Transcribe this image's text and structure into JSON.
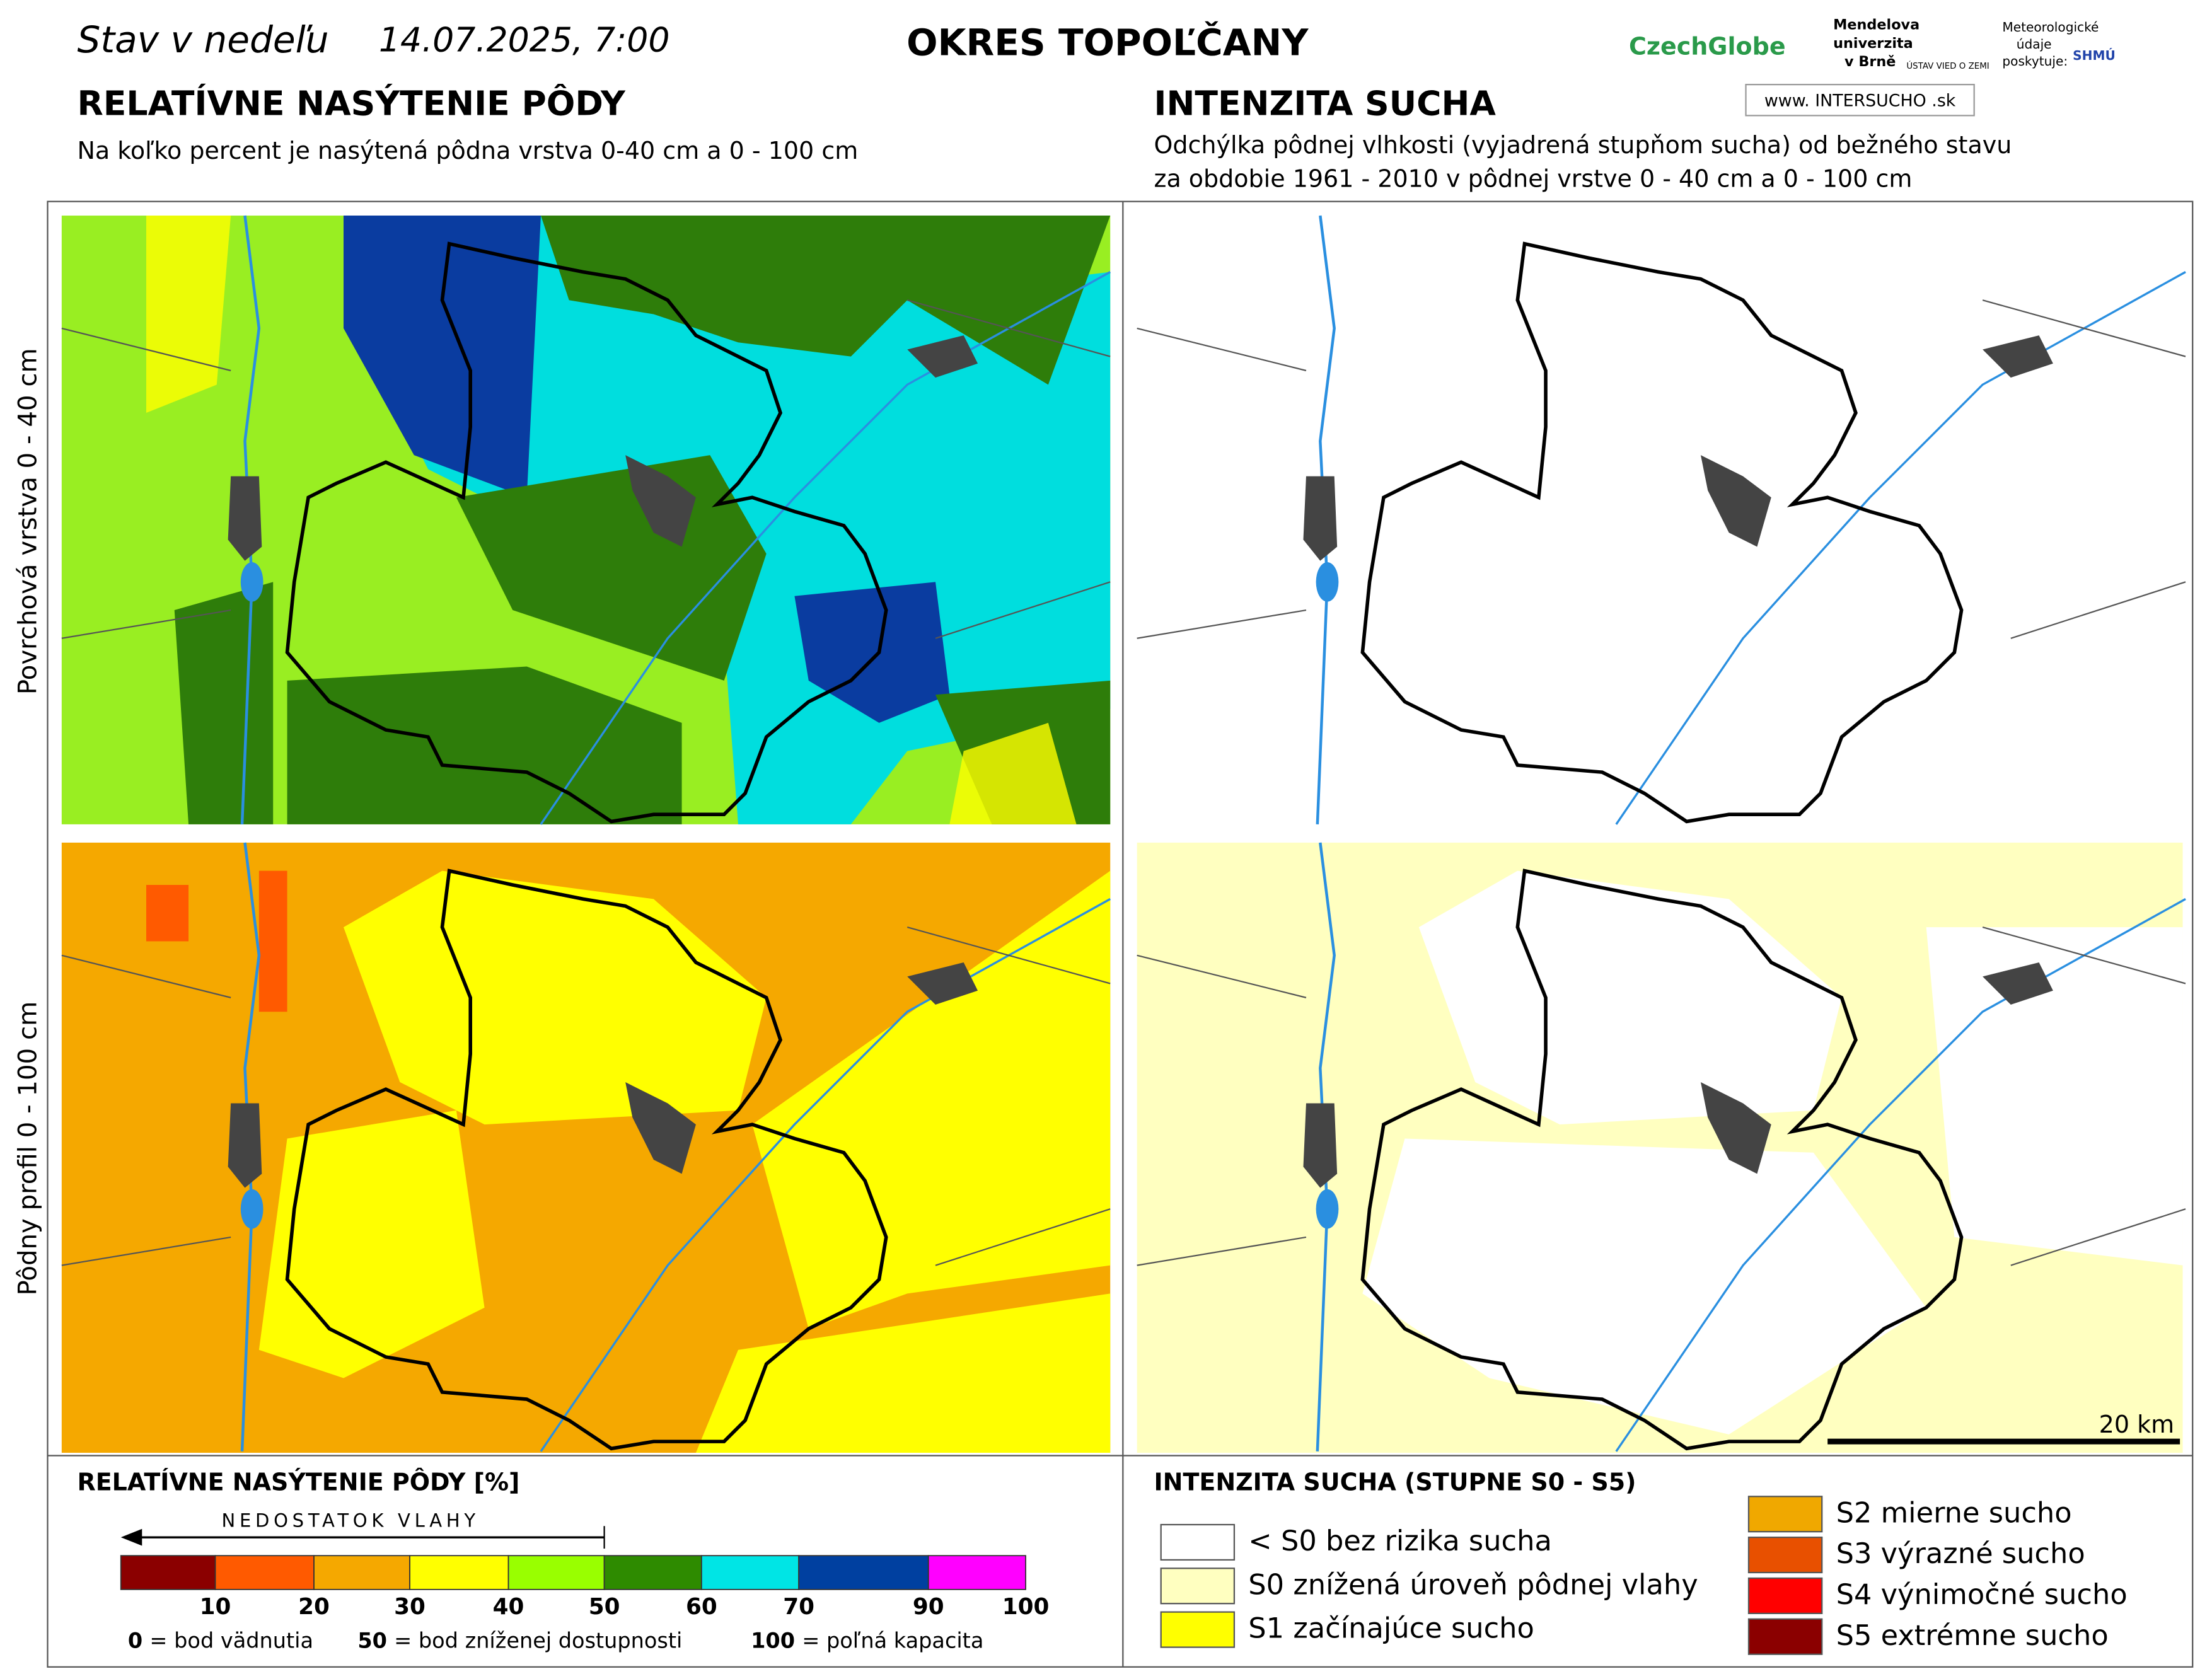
{
  "header": {
    "date_prefix": "Stav v nedeľu",
    "date": "14.07.2025, 7:00",
    "district": "OKRES TOPOĽČANY",
    "logos": {
      "czechglobe": "CzechGlobe",
      "mendelu": [
        "Mendelova",
        "univerzita",
        "v Brně"
      ],
      "uvz": "ÚSTAV VIED O ZEMI",
      "meteo": [
        "Meteorologické",
        "údaje",
        "poskytuje:"
      ],
      "shmu": "SHMÚ",
      "intersucho": "www. INTERSUCHO .sk"
    }
  },
  "left": {
    "title": "RELATÍVNE NASÝTENIE PÔDY",
    "subtitle": "Na koľko percent je nasýtená pôdna vrstva 0-40 cm a 0 - 100 cm"
  },
  "right": {
    "title": "INTENZITA SUCHA",
    "subtitle": [
      "Odchýlka pôdnej vlhkosti (vyjadrená stupňom sucha) od bežného stavu",
      "za obdobie 1961 - 2010 v pôdnej vrstve 0 - 40 cm a 0 - 100 cm"
    ]
  },
  "rows": [
    "Povrchová vrstva 0 - 40 cm",
    "Pôdny profil 0 - 100 cm"
  ],
  "scale_bar": "20 km",
  "legend_left": {
    "title": "RELATÍVNE NASÝTENIE PÔDY [%]",
    "arrow": "NEDOSTATOK VLAHY",
    "colors": [
      "#8b0000",
      "#ff5a00",
      "#f5a800",
      "#ffff00",
      "#99ff00",
      "#2e8b00",
      "#00e5e5",
      "#0040a0",
      "#ff00ff"
    ],
    "ticks": [
      10,
      20,
      30,
      40,
      50,
      60,
      70,
      90,
      100
    ],
    "notes": [
      {
        "key": "0",
        "text": "= bod vädnutia"
      },
      {
        "key": "50",
        "text": "= bod zníženej dostupnosti"
      },
      {
        "key": "100",
        "text": "= poľná kapacita"
      }
    ]
  },
  "legend_right": {
    "title": "INTENZITA SUCHA (STUPNE S0 - S5)",
    "items": [
      {
        "color": "#ffffff",
        "label": "< S0 bez rizika sucha"
      },
      {
        "color": "#ffffc0",
        "label": "S0 znížená úroveň pôdnej vlahy"
      },
      {
        "color": "#ffff00",
        "label": "S1 začínajúce sucho"
      },
      {
        "color": "#f0a800",
        "label": "S2 mierne sucho"
      },
      {
        "color": "#e85000",
        "label": "S3 výrazné sucho"
      },
      {
        "color": "#ff0000",
        "label": "S4 výnimočné sucho"
      },
      {
        "color": "#8b0000",
        "label": "S5 extrémne sucho"
      }
    ]
  }
}
